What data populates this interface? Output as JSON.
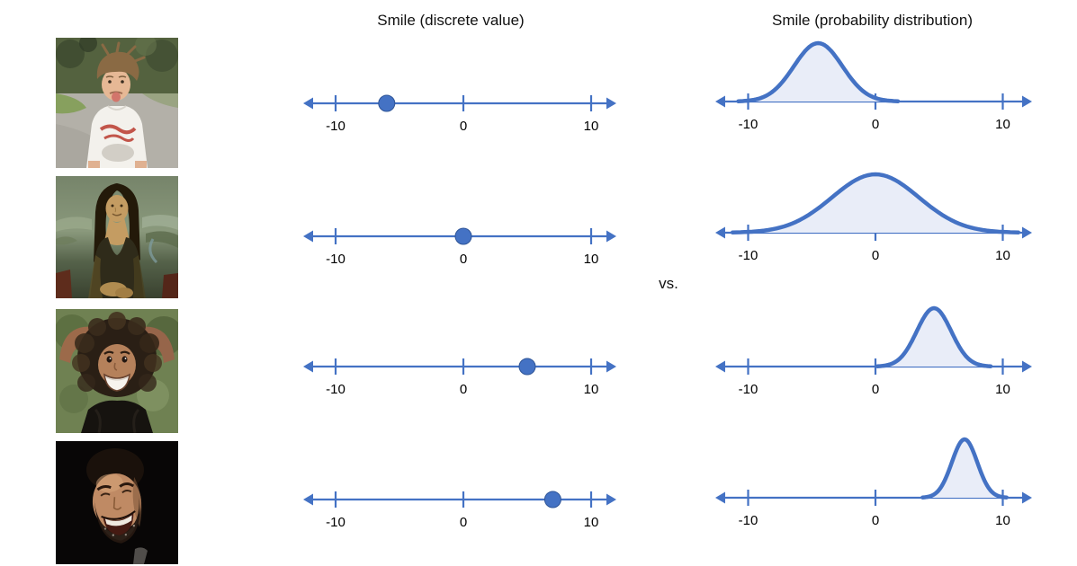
{
  "titles": {
    "discrete": "Smile (discrete value)",
    "probability": "Smile (probability distribution)",
    "vs": "vs."
  },
  "axis": {
    "tick_values": [
      -10,
      0,
      10
    ],
    "tick_labels": [
      "-10",
      "0",
      "10"
    ],
    "color": "#4472C4"
  },
  "style": {
    "curve_stroke": "#4472C4",
    "curve_fill": "#E9EDF8",
    "dot_fill": "#4472C4",
    "dot_stroke": "#2F5597"
  },
  "rows": [
    {
      "photo": "boy-pouting",
      "photo_description": "Boy frowning and sticking out his tongue, white t-shirt with red print",
      "discrete_value": -6,
      "distribution": {
        "mean": -4.5,
        "sigma": 1.9
      }
    },
    {
      "photo": "mona-lisa",
      "photo_description": "Mona Lisa painting with ambiguous smile",
      "discrete_value": 0,
      "distribution": {
        "mean": 0,
        "sigma": 3.4
      }
    },
    {
      "photo": "smiling-child",
      "photo_description": "Smiling child with curly hair, hands behind head",
      "discrete_value": 5,
      "distribution": {
        "mean": 4.6,
        "sigma": 1.35
      }
    },
    {
      "photo": "laughing-man",
      "photo_description": "Laughing bearded man on dark background",
      "discrete_value": 7,
      "distribution": {
        "mean": 7,
        "sigma": 1.0
      }
    }
  ]
}
